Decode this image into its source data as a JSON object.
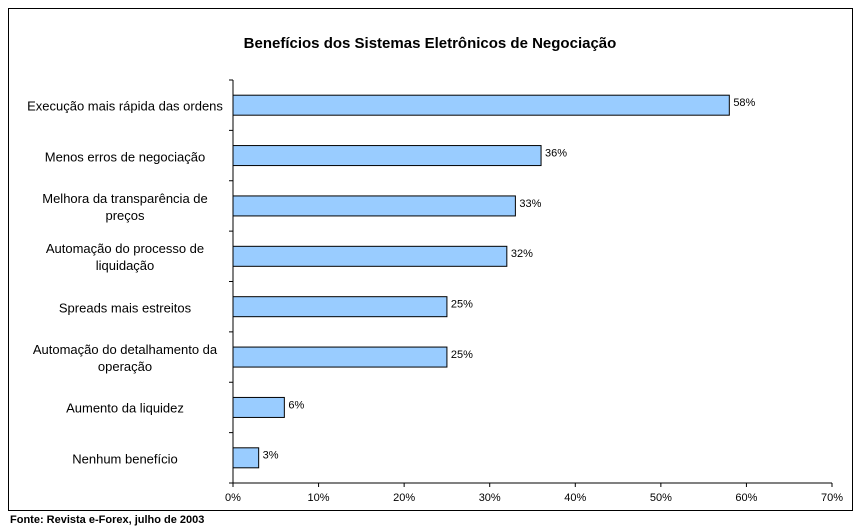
{
  "chart_data": {
    "type": "bar",
    "orientation": "horizontal",
    "title": "Benefícios dos Sistemas Eletrônicos de Negociação",
    "categories": [
      "Execução mais rápida das ordens",
      "Menos erros de negociação",
      "Melhora da transparência de preços",
      "Automação do processo de liquidação",
      "Spreads mais estreitos",
      "Automação do detalhamento da operação",
      "Aumento da liquidez",
      "Nenhum benefício"
    ],
    "values": [
      58,
      36,
      33,
      32,
      25,
      25,
      6,
      3
    ],
    "value_labels": [
      "58%",
      "36%",
      "33%",
      "32%",
      "25%",
      "25%",
      "6%",
      "3%"
    ],
    "color": "#99ccff",
    "xlim": [
      0,
      70
    ],
    "xticks": [
      {
        "value": 0,
        "label": "0%"
      },
      {
        "value": 10,
        "label": "10%"
      },
      {
        "value": 20,
        "label": "20%"
      },
      {
        "value": 30,
        "label": "30%"
      },
      {
        "value": 40,
        "label": "40%"
      },
      {
        "value": 50,
        "label": "50%"
      },
      {
        "value": 60,
        "label": "60%"
      },
      {
        "value": 70,
        "label": "70%"
      }
    ],
    "source": "Fonte: Revista e-Forex, julho de 2003"
  }
}
